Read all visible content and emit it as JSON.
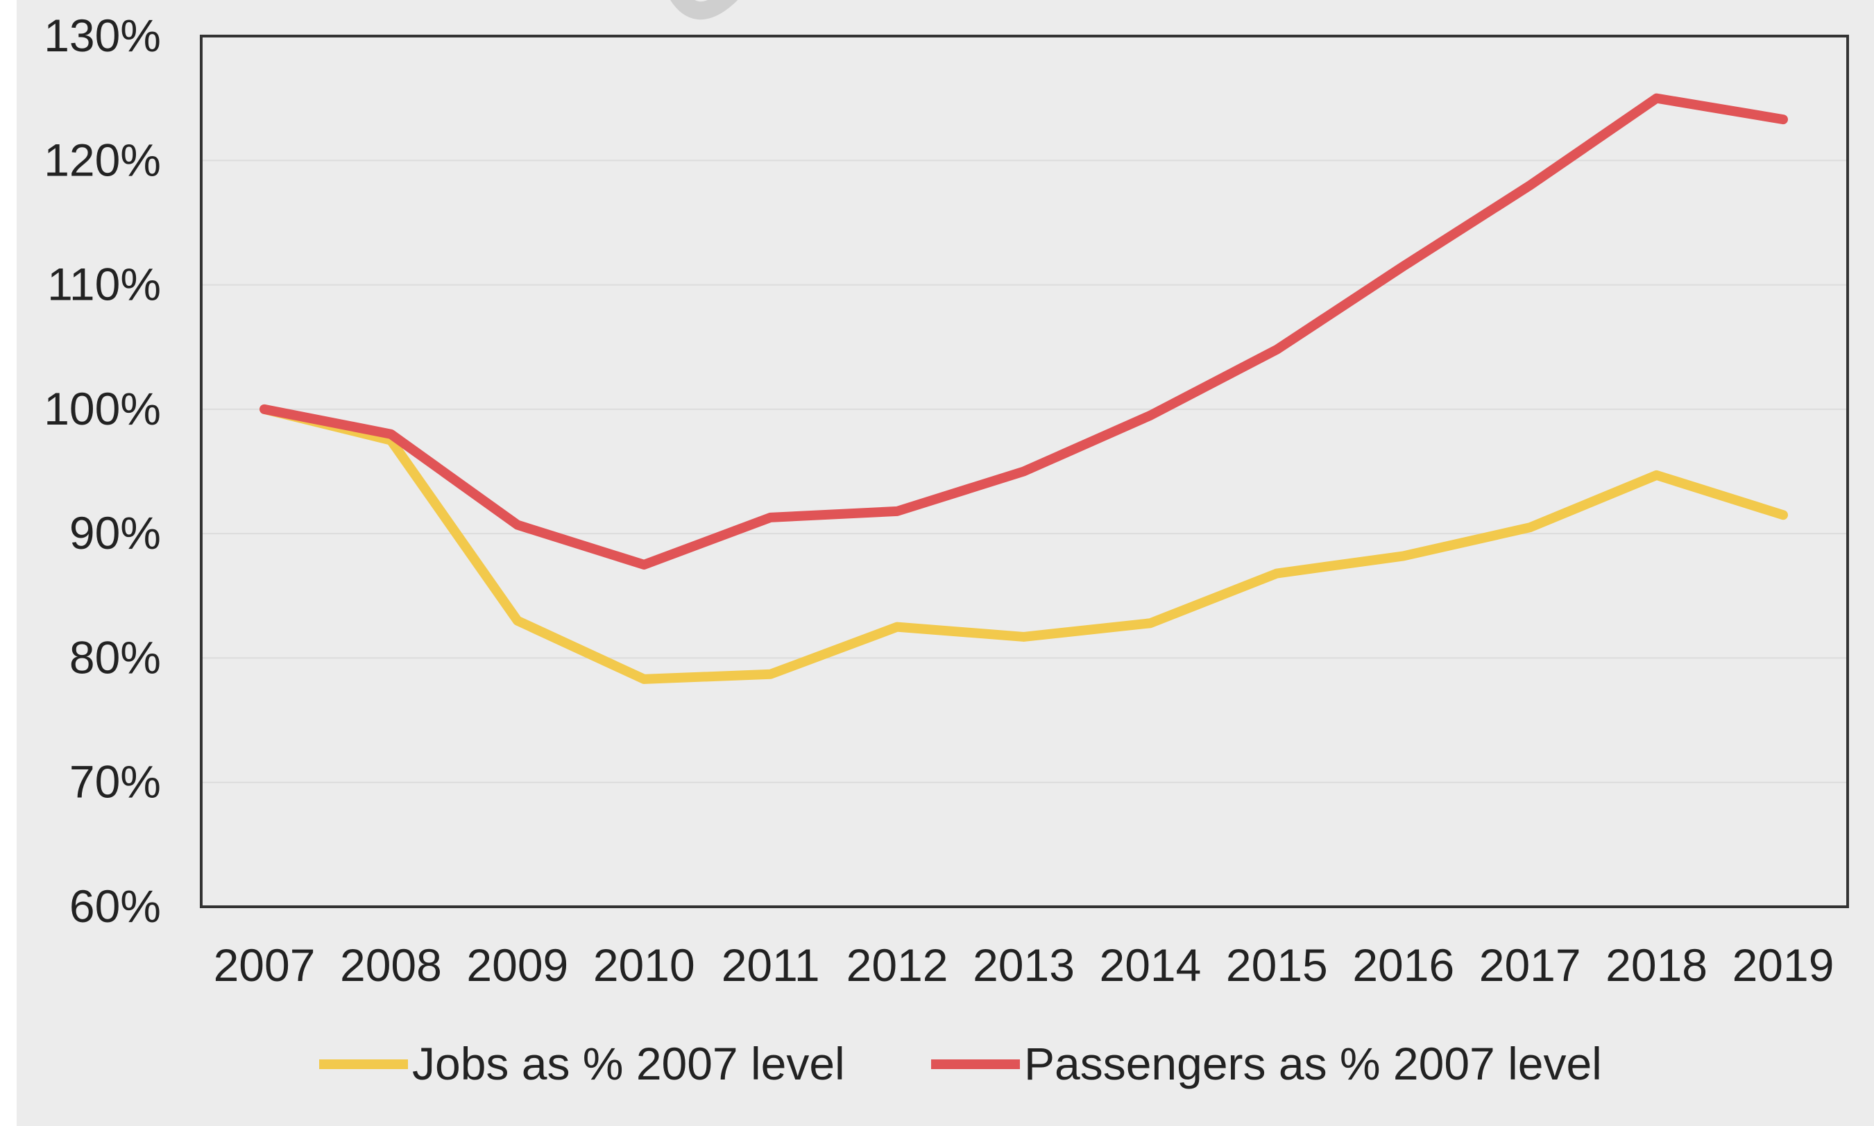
{
  "chart_data": {
    "type": "line",
    "categories": [
      "2007",
      "2008",
      "2009",
      "2010",
      "2011",
      "2012",
      "2013",
      "2014",
      "2015",
      "2016",
      "2017",
      "2018",
      "2019"
    ],
    "series": [
      {
        "name": "Jobs as % 2007 level",
        "color": "#f2c94c",
        "values": [
          100,
          97.5,
          83,
          78.3,
          78.7,
          82.5,
          81.7,
          82.8,
          86.8,
          88.2,
          90.5,
          94.7,
          91.5
        ]
      },
      {
        "name": "Passengers as % 2007 level",
        "color": "#e05456",
        "values": [
          100,
          98,
          90.7,
          87.5,
          91.3,
          91.8,
          95,
          99.5,
          104.8,
          111.5,
          118,
          125,
          123.3
        ]
      }
    ],
    "yticks": [
      "60%",
      "70%",
      "80%",
      "90%",
      "100%",
      "110%",
      "120%",
      "130%"
    ],
    "ylim": [
      60,
      130
    ],
    "xlabel": "",
    "ylabel": "",
    "grid": true,
    "legend_position": "bottom"
  }
}
